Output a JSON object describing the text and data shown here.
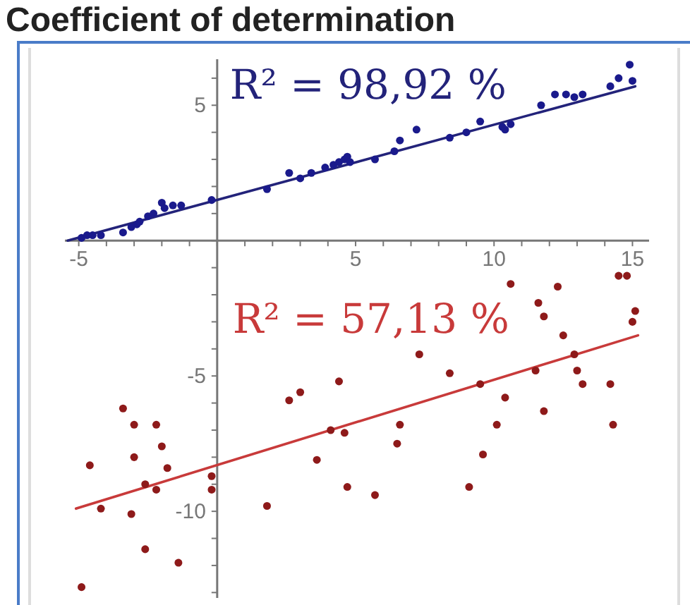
{
  "chart_data": {
    "type": "scatter",
    "title": "Coefficient of determination",
    "xlim": [
      -5.5,
      15.6
    ],
    "ylim": [
      -13.2,
      6.7
    ],
    "xticks": [
      {
        "value": -5,
        "label": "-5"
      },
      {
        "value": -4,
        "label": null
      },
      {
        "value": -3,
        "label": null
      },
      {
        "value": -2,
        "label": null
      },
      {
        "value": -1,
        "label": null
      },
      {
        "value": 0,
        "label": null
      },
      {
        "value": 1,
        "label": null
      },
      {
        "value": 2,
        "label": null
      },
      {
        "value": 3,
        "label": null
      },
      {
        "value": 4,
        "label": null
      },
      5,
      {
        "value": 6,
        "label": null
      },
      {
        "value": 7,
        "label": null
      },
      {
        "value": 8,
        "label": null
      },
      {
        "value": 9,
        "label": null
      },
      10,
      {
        "value": 11,
        "label": null
      },
      {
        "value": 12,
        "label": null
      },
      {
        "value": 13,
        "label": null
      },
      {
        "value": 14,
        "label": null
      },
      15
    ],
    "yticks": [
      {
        "value": -13,
        "label": null
      },
      {
        "value": -12,
        "label": null
      },
      {
        "value": -11,
        "label": null
      },
      -10,
      {
        "value": -9,
        "label": null
      },
      {
        "value": -8,
        "label": null
      },
      {
        "value": -7,
        "label": null
      },
      {
        "value": -6,
        "label": null
      },
      -5,
      {
        "value": -4,
        "label": null
      },
      {
        "value": -3,
        "label": null
      },
      {
        "value": -2,
        "label": null
      },
      {
        "value": -1,
        "label": null
      },
      {
        "value": 0,
        "label": null
      },
      {
        "value": 1,
        "label": null
      },
      {
        "value": 2,
        "label": null
      },
      {
        "value": 3,
        "label": null
      },
      {
        "value": 4,
        "label": null
      },
      5,
      {
        "value": 6,
        "label": null
      }
    ],
    "annotations": [
      "R² = 98,92 %",
      "R² = 57,13 %"
    ],
    "series": [
      {
        "type": "line",
        "marker": "none",
        "color": "#23237a",
        "x": [
          -5.4,
          15.1
        ],
        "values": [
          0.0,
          5.7
        ]
      },
      {
        "marker": "circle",
        "color": "#1a1a8c",
        "x": [
          -4.9,
          -4.7,
          -4.5,
          -4.2,
          -3.4,
          -3.1,
          -2.9,
          -2.8,
          -2.5,
          -2.3,
          -2.0,
          -1.9,
          -1.6,
          -1.3,
          -0.2,
          1.8,
          2.6,
          3.0,
          3.4,
          3.9,
          4.2,
          4.4,
          4.6,
          4.7,
          4.8,
          5.7,
          6.4,
          6.6,
          7.2,
          8.4,
          9.0,
          9.5,
          10.3,
          10.4,
          10.6,
          11.7,
          12.2,
          12.6,
          12.9,
          13.2,
          14.2,
          14.5,
          14.9,
          15.0
        ],
        "values": [
          0.1,
          0.2,
          0.2,
          0.2,
          0.3,
          0.5,
          0.6,
          0.7,
          0.9,
          1.0,
          1.4,
          1.2,
          1.3,
          1.3,
          1.5,
          1.9,
          2.5,
          2.3,
          2.5,
          2.7,
          2.8,
          2.9,
          3.0,
          3.1,
          2.9,
          3.0,
          3.3,
          3.7,
          4.1,
          3.8,
          4.0,
          4.4,
          4.2,
          4.1,
          4.3,
          5.0,
          5.4,
          5.4,
          5.3,
          5.4,
          5.7,
          6.0,
          6.5,
          5.9
        ]
      },
      {
        "type": "line",
        "marker": "none",
        "color": "#c83a3a",
        "x": [
          -5.1,
          15.2
        ],
        "values": [
          -9.9,
          -3.5
        ]
      },
      {
        "marker": "circle",
        "color": "#8e1a1a",
        "x": [
          -4.9,
          -4.6,
          -4.2,
          -3.4,
          -3.1,
          -3.0,
          -3.0,
          -2.6,
          -2.6,
          -2.2,
          -2.2,
          -2.0,
          -1.8,
          -1.4,
          -0.2,
          -0.2,
          1.8,
          2.6,
          3.0,
          3.6,
          4.1,
          4.4,
          4.6,
          4.7,
          5.7,
          6.5,
          6.6,
          7.3,
          8.4,
          9.1,
          9.5,
          9.6,
          10.1,
          10.4,
          10.6,
          11.5,
          11.6,
          11.8,
          11.8,
          12.3,
          12.5,
          12.9,
          13.0,
          13.2,
          14.2,
          14.3,
          14.5,
          14.8,
          15.0,
          15.1
        ],
        "values": [
          -12.8,
          -8.3,
          -9.9,
          -6.2,
          -10.1,
          -6.8,
          -8.0,
          -9.0,
          -11.4,
          -9.2,
          -6.8,
          -7.6,
          -8.4,
          -11.9,
          -8.7,
          -9.2,
          -9.8,
          -5.9,
          -5.6,
          -8.1,
          -7.0,
          -5.2,
          -7.1,
          -9.1,
          -9.4,
          -7.5,
          -6.8,
          -4.2,
          -4.9,
          -9.1,
          -5.3,
          -7.9,
          -6.8,
          -5.8,
          -1.6,
          -4.8,
          -2.3,
          -2.8,
          -6.3,
          -1.7,
          -3.5,
          -4.2,
          -4.8,
          -5.3,
          -5.3,
          -6.8,
          -1.3,
          -1.3,
          -3.0,
          -2.6
        ]
      }
    ]
  }
}
